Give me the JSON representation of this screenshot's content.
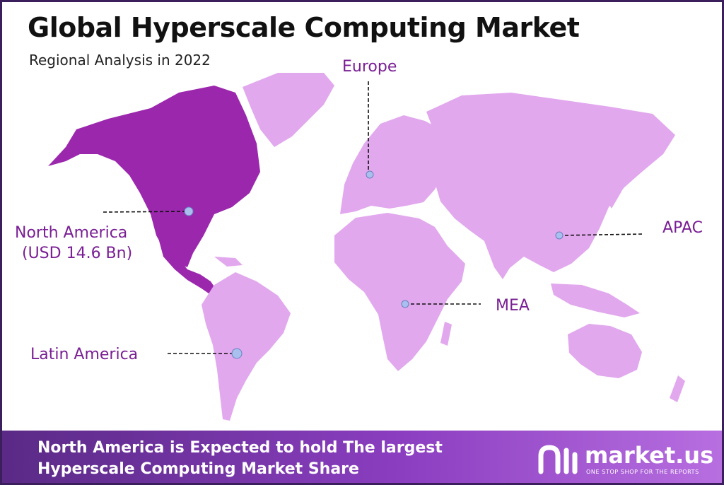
{
  "title": "Global Hyperscale Computing Market",
  "subtitle": "Regional Analysis in 2022",
  "regions": {
    "north_america": {
      "name": "North America",
      "value": "(USD 14.6 Bn)"
    },
    "europe": {
      "name": "Europe"
    },
    "apac": {
      "name": "APAC"
    },
    "mea": {
      "name": "MEA"
    },
    "latin_america": {
      "name": "Latin America"
    }
  },
  "footer": {
    "line1": "North America is Expected to hold The largest",
    "line2": "Hyperscale Computing Market Share"
  },
  "brand": {
    "name": "market.us",
    "tagline": "ONE STOP SHOP FOR THE REPORTS"
  },
  "colors": {
    "highlight_region": "#9b27ad",
    "other_regions": "#e2a8ee",
    "label": "#7a1f94",
    "marker": "#a9c0ee",
    "footer_gradient": [
      "#5a2a86",
      "#b86fe0"
    ]
  }
}
